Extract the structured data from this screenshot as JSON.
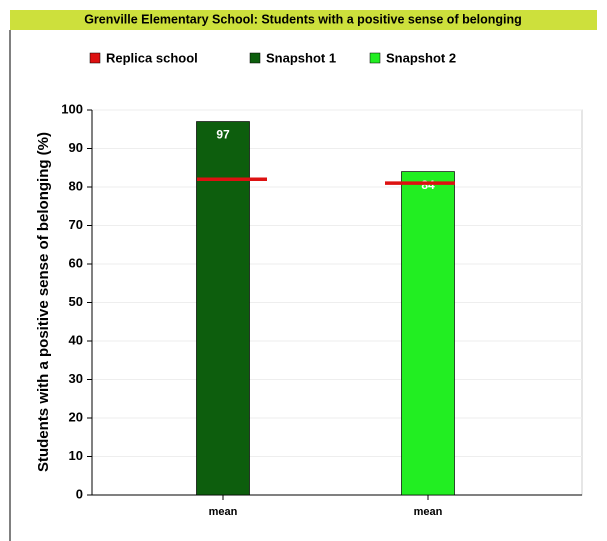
{
  "chart_data": {
    "type": "bar",
    "title": "Grenville Elementary School: Students with a positive sense of belonging",
    "ylabel": "Students with a positive sense of belonging (%)",
    "categories": [
      "mean",
      "mean"
    ],
    "series": [
      {
        "name": "Replica school",
        "color": "#dd1111",
        "values": [
          82,
          81
        ]
      },
      {
        "name": "Snapshot 1",
        "color": "#0d5e0d",
        "values": [
          97,
          null
        ]
      },
      {
        "name": "Snapshot 2",
        "color": "#22ee22",
        "values": [
          null,
          84
        ]
      }
    ],
    "ylim": [
      0,
      100
    ],
    "yticks": [
      0,
      10,
      20,
      30,
      40,
      50,
      60,
      70,
      80,
      90,
      100
    ],
    "grid": true
  }
}
